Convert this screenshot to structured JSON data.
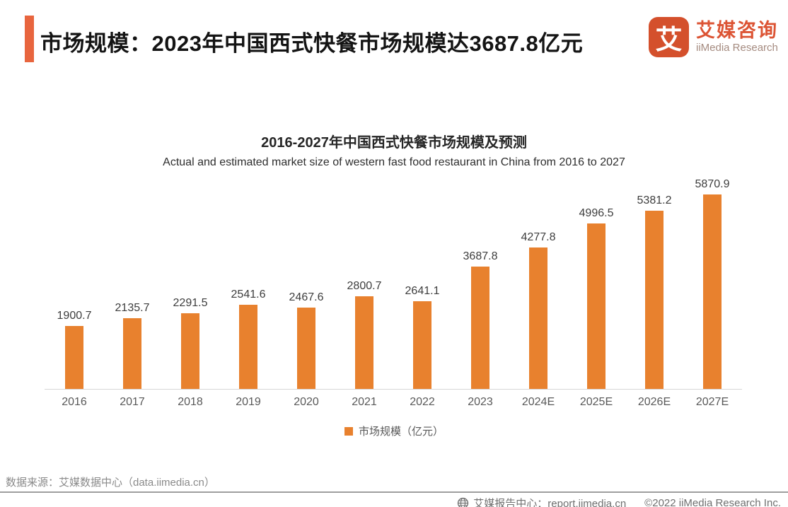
{
  "header": {
    "title": "市场规模：2023年中国西式快餐市场规模达3687.8亿元",
    "accent_color": "#e8653e",
    "logo": {
      "icon_char": "艾",
      "icon_bg": "#d4502c",
      "name_cn": "艾媒咨询",
      "name_en": "iiMedia Research"
    }
  },
  "chart_data": {
    "type": "bar",
    "title": "2016-2027年中国西式快餐市场规模及预测",
    "subtitle": "Actual and estimated market size of western fast food restaurant in China from 2016 to 2027",
    "categories": [
      "2016",
      "2017",
      "2018",
      "2019",
      "2020",
      "2021",
      "2022",
      "2023",
      "2024E",
      "2025E",
      "2026E",
      "2027E"
    ],
    "values": [
      1900.7,
      2135.7,
      2291.5,
      2541.6,
      2467.6,
      2800.7,
      2641.1,
      3687.8,
      4277.8,
      4996.5,
      5381.2,
      5870.9
    ],
    "bar_color": "#e8812e",
    "legend": "市场规模（亿元）",
    "legend_position": "bottom",
    "xlabel": "",
    "ylabel": "",
    "ylim": [
      0,
      6400
    ],
    "grid": false,
    "data_labels": true
  },
  "footer": {
    "source": "数据来源：艾媒数据中心（data.iimedia.cn）",
    "report_center": "艾媒报告中心：report.iimedia.cn",
    "copyright": "©2022 iiMedia Research Inc.",
    "globe_icon": "globe-icon"
  }
}
